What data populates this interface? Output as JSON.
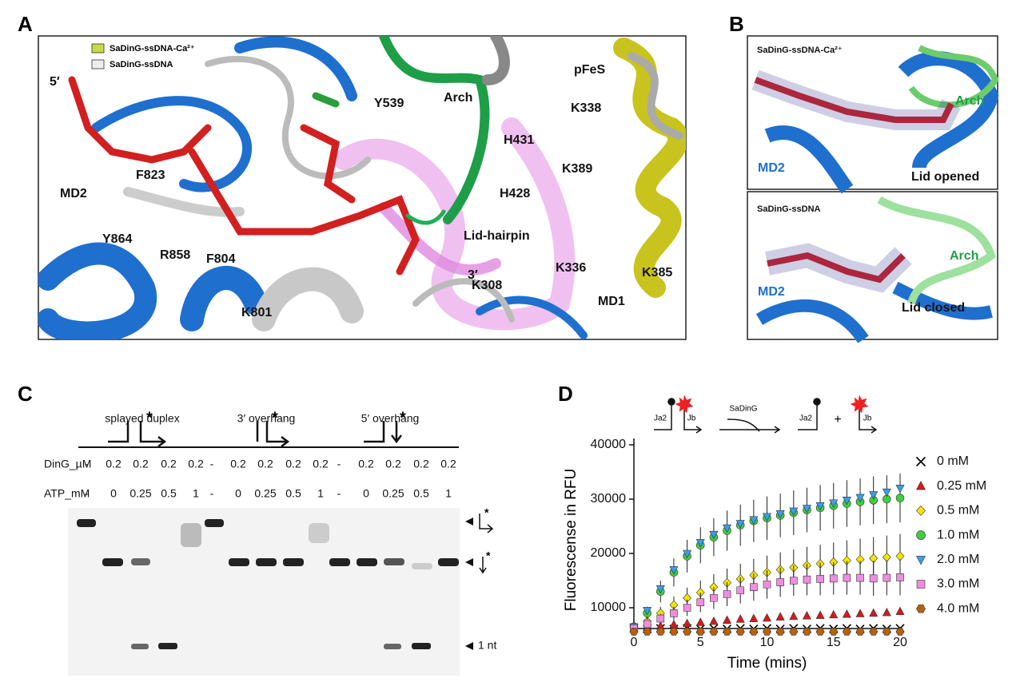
{
  "panel_labels": [
    "A",
    "B",
    "C",
    "D"
  ],
  "panel_a": {
    "legend": [
      "SaDinG-ssDNA-Ca²⁺",
      "SaDinG-ssDNA"
    ],
    "labels": [
      "5′",
      "MD2",
      "F823",
      "Y864",
      "R858",
      "F804",
      "K801",
      "Y539",
      "Arch",
      "pFeS",
      "K338",
      "H431",
      "K389",
      "H428",
      "Lid-hairpin",
      "3′",
      "K336",
      "K385",
      "K308",
      "MD1"
    ]
  },
  "panel_b": {
    "top": [
      "SaDinG-ssDNA-Ca²⁺",
      "MD2",
      "Arch",
      "Lid opened"
    ],
    "bottom": [
      "SaDinG-ssDNA",
      "MD2",
      "Arch",
      "Lid closed"
    ]
  },
  "panel_c": {
    "substrates": [
      "splayed duplex",
      "3′ overhang",
      "5′ overhang"
    ],
    "row_labels": [
      "DinG_µM",
      "ATP_mM"
    ],
    "ding": [
      "-",
      "0.2",
      "0.2",
      "0.2",
      "0.2",
      "-",
      "0.2",
      "0.2",
      "0.2",
      "0.2",
      "-",
      "0.2",
      "0.2",
      "0.2",
      "0.2"
    ],
    "atp": [
      "-",
      "0",
      "0.25",
      "0.5",
      "1",
      "-",
      "0",
      "0.25",
      "0.5",
      "1",
      "-",
      "0",
      "0.25",
      "0.5",
      "1"
    ],
    "marker_label": "1 nt"
  },
  "panel_d": {
    "schematic": [
      "Ja2",
      "Jb",
      "SaDinG",
      "Ja2",
      "+",
      "Jb"
    ]
  },
  "chart_data": {
    "type": "scatter",
    "xlabel": "Time (mins)",
    "ylabel": "Fluorescense in RFU",
    "x": [
      0,
      1,
      2,
      3,
      4,
      5,
      6,
      7,
      8,
      9,
      10,
      11,
      12,
      13,
      14,
      15,
      16,
      17,
      18,
      19,
      20
    ],
    "xlim": [
      0,
      20
    ],
    "xticks": [
      0,
      5,
      10,
      15,
      20
    ],
    "ylim": [
      5000,
      40000
    ],
    "yticks": [
      10000,
      20000,
      30000,
      40000
    ],
    "series": [
      {
        "name": "0 mM",
        "color": "#000000",
        "marker": "x",
        "values": [
          6200,
          6100,
          6200,
          6100,
          6200,
          6100,
          6200,
          6100,
          6200,
          6100,
          6200,
          6100,
          6200,
          6100,
          6200,
          6100,
          6200,
          6100,
          6200,
          6100,
          6200
        ]
      },
      {
        "name": "0.25 mM",
        "color": "#d7191c",
        "marker": "triangle",
        "values": [
          6200,
          6400,
          6600,
          6900,
          7100,
          7300,
          7500,
          7700,
          7900,
          8000,
          8100,
          8300,
          8400,
          8500,
          8600,
          8700,
          8800,
          8900,
          9000,
          9100,
          9300
        ]
      },
      {
        "name": "0.5 mM",
        "color": "#f5e400",
        "marker": "diamond",
        "values": [
          6300,
          7500,
          9000,
          10500,
          11800,
          12800,
          13800,
          14600,
          15300,
          16000,
          16500,
          17000,
          17400,
          17800,
          18100,
          18400,
          18700,
          18900,
          19100,
          19300,
          19500
        ],
        "errors": [
          300,
          800,
          1200,
          1600,
          1900,
          2200,
          2400,
          2600,
          2800,
          3000,
          3100,
          3200,
          3300,
          3400,
          3500,
          3600,
          3700,
          3800,
          3900,
          4000,
          4100
        ]
      },
      {
        "name": "1.0 mM",
        "color": "#3ecf3e",
        "marker": "circle",
        "values": [
          6500,
          9000,
          13000,
          16500,
          19500,
          21500,
          23000,
          24200,
          25200,
          26000,
          26500,
          27000,
          27500,
          28000,
          28400,
          28800,
          29200,
          29500,
          29800,
          30000,
          30200
        ],
        "errors": [
          400,
          1200,
          2000,
          2600,
          3000,
          3300,
          3500,
          3700,
          3800,
          3900,
          4000,
          4000,
          4100,
          4100,
          4200,
          4200,
          4300,
          4300,
          4400,
          4400,
          4500
        ]
      },
      {
        "name": "2.0 mM",
        "color": "#3a9ee8",
        "marker": "triangle-down",
        "values": [
          6500,
          9500,
          13500,
          17000,
          20000,
          22000,
          23500,
          24700,
          25500,
          26200,
          26800,
          27300,
          27800,
          28300,
          28800,
          29300,
          29800,
          30300,
          30800,
          31300,
          32000
        ]
      },
      {
        "name": "3.0 mM",
        "color": "#f08de0",
        "marker": "square",
        "values": [
          6200,
          7000,
          8000,
          9000,
          10000,
          11000,
          11800,
          12500,
          13200,
          13800,
          14300,
          14700,
          15000,
          15200,
          15300,
          15400,
          15500,
          15500,
          15400,
          15500,
          15600
        ],
        "errors": [
          300,
          600,
          900,
          1200,
          1500,
          1800,
          2000,
          2200,
          2400,
          2500,
          2600,
          2700,
          2800,
          2900,
          3000,
          3000,
          3100,
          3100,
          3200,
          3200,
          3300
        ]
      },
      {
        "name": "4.0 mM",
        "color": "#b8600b",
        "marker": "hexagon",
        "values": [
          5600,
          5600,
          5600,
          5600,
          5600,
          5600,
          5600,
          5600,
          5600,
          5600,
          5600,
          5600,
          5600,
          5600,
          5600,
          5600,
          5600,
          5600,
          5600,
          5600,
          5600
        ]
      }
    ]
  }
}
